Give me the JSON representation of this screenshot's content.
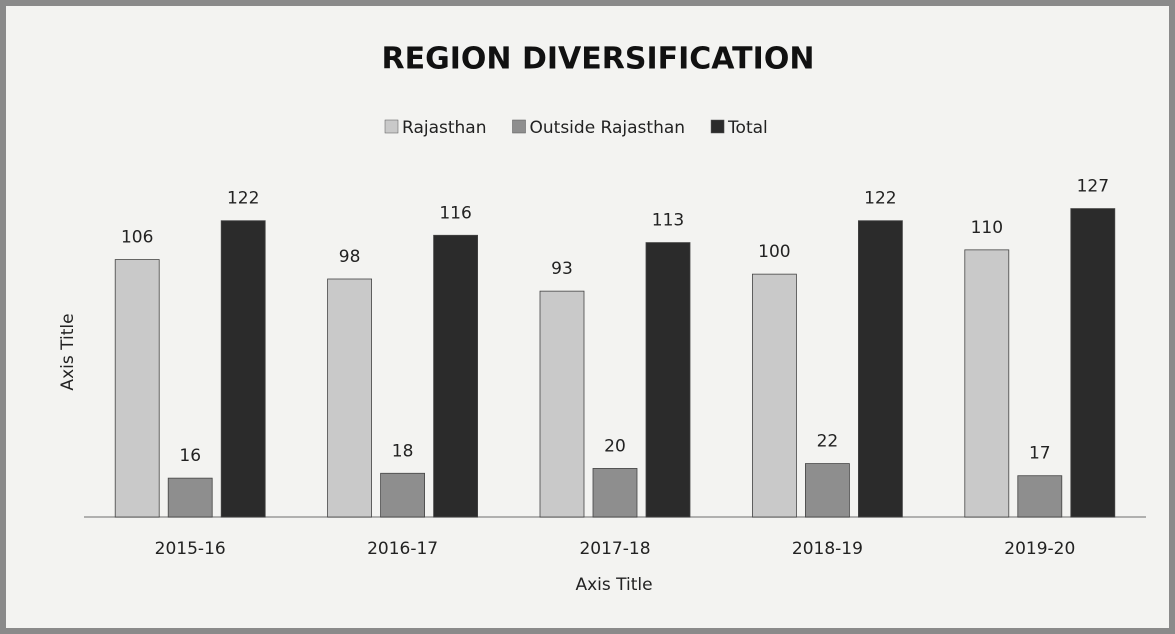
{
  "chart_data": {
    "type": "bar",
    "title": "REGION DIVERSIFICATION",
    "x_label": "Axis Title",
    "y_label": "Axis Title",
    "categories": [
      "2015-16",
      "2016-17",
      "2017-18",
      "2018-19",
      "2019-20"
    ],
    "series": [
      {
        "name": "Rajasthan",
        "color": "#c9c9c9",
        "values": [
          106,
          98,
          93,
          100,
          110
        ]
      },
      {
        "name": "Outside Rajasthan",
        "color": "#8e8e8e",
        "values": [
          16,
          18,
          20,
          22,
          17
        ]
      },
      {
        "name": "Total",
        "color": "#2b2b2b",
        "values": [
          122,
          116,
          113,
          122,
          127
        ]
      }
    ],
    "ylim": [
      0,
      140
    ],
    "legend": "top",
    "grid": false
  }
}
